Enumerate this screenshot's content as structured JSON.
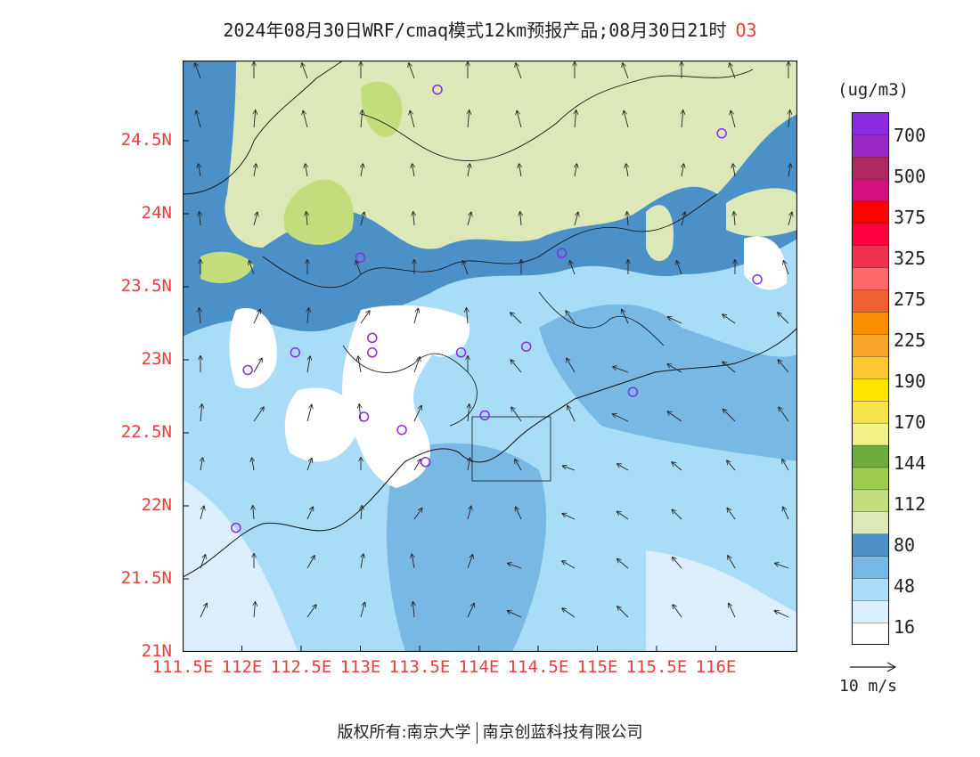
{
  "title": {
    "main": "2024年08月30日WRF/cmaq模式12km预报产品;08月30日21时",
    "species": "O3"
  },
  "axes": {
    "lat_ticks": [
      "24.5N",
      "24N",
      "23.5N",
      "23N",
      "22.5N",
      "22N",
      "21.5N",
      "21N"
    ],
    "lon_ticks": [
      "111.5E",
      "112E",
      "112.5E",
      "113E",
      "113.5E",
      "114E",
      "114.5E",
      "115E",
      "115.5E",
      "116E"
    ],
    "lat_range": [
      21,
      25
    ],
    "lon_range": [
      111.5,
      116.7
    ]
  },
  "colorbar": {
    "units": "(ug/m3)",
    "labels": [
      "700",
      "500",
      "375",
      "325",
      "275",
      "225",
      "190",
      "170",
      "144",
      "112",
      "80",
      "48",
      "16"
    ],
    "colors": [
      "#ffffff",
      "#dcefff",
      "#a9dcf6",
      "#78b9e4",
      "#4b91c8",
      "#dde8b8",
      "#c4dd7c",
      "#9ccc4c",
      "#6fab3a",
      "#f3f38a",
      "#f5e24d",
      "#ffe500",
      "#fbc831",
      "#f6a42a",
      "#f78f00",
      "#f06030",
      "#fd6a6a",
      "#ef3150",
      "#ff0040",
      "#ff0000",
      "#d41080",
      "#b02860",
      "#9a28c8",
      "#8a2be2"
    ]
  },
  "wind": {
    "scale_label": "10 m/s"
  },
  "stations": [
    {
      "lon": 113.65,
      "lat": 24.85
    },
    {
      "lon": 116.05,
      "lat": 24.55
    },
    {
      "lon": 113.0,
      "lat": 23.7
    },
    {
      "lon": 114.7,
      "lat": 23.73
    },
    {
      "lon": 116.35,
      "lat": 23.55
    },
    {
      "lon": 112.45,
      "lat": 23.05
    },
    {
      "lon": 113.1,
      "lat": 23.15
    },
    {
      "lon": 113.1,
      "lat": 23.05
    },
    {
      "lon": 113.85,
      "lat": 23.05
    },
    {
      "lon": 114.4,
      "lat": 23.09
    },
    {
      "lon": 112.05,
      "lat": 22.93
    },
    {
      "lon": 115.3,
      "lat": 22.78
    },
    {
      "lon": 113.03,
      "lat": 22.61
    },
    {
      "lon": 113.35,
      "lat": 22.52
    },
    {
      "lon": 114.05,
      "lat": 22.62
    },
    {
      "lon": 113.55,
      "lat": 22.3
    },
    {
      "lon": 111.95,
      "lat": 21.85
    }
  ],
  "footer": {
    "left": "版权所有:南京大学",
    "right": "南京创蓝科技有限公司"
  }
}
